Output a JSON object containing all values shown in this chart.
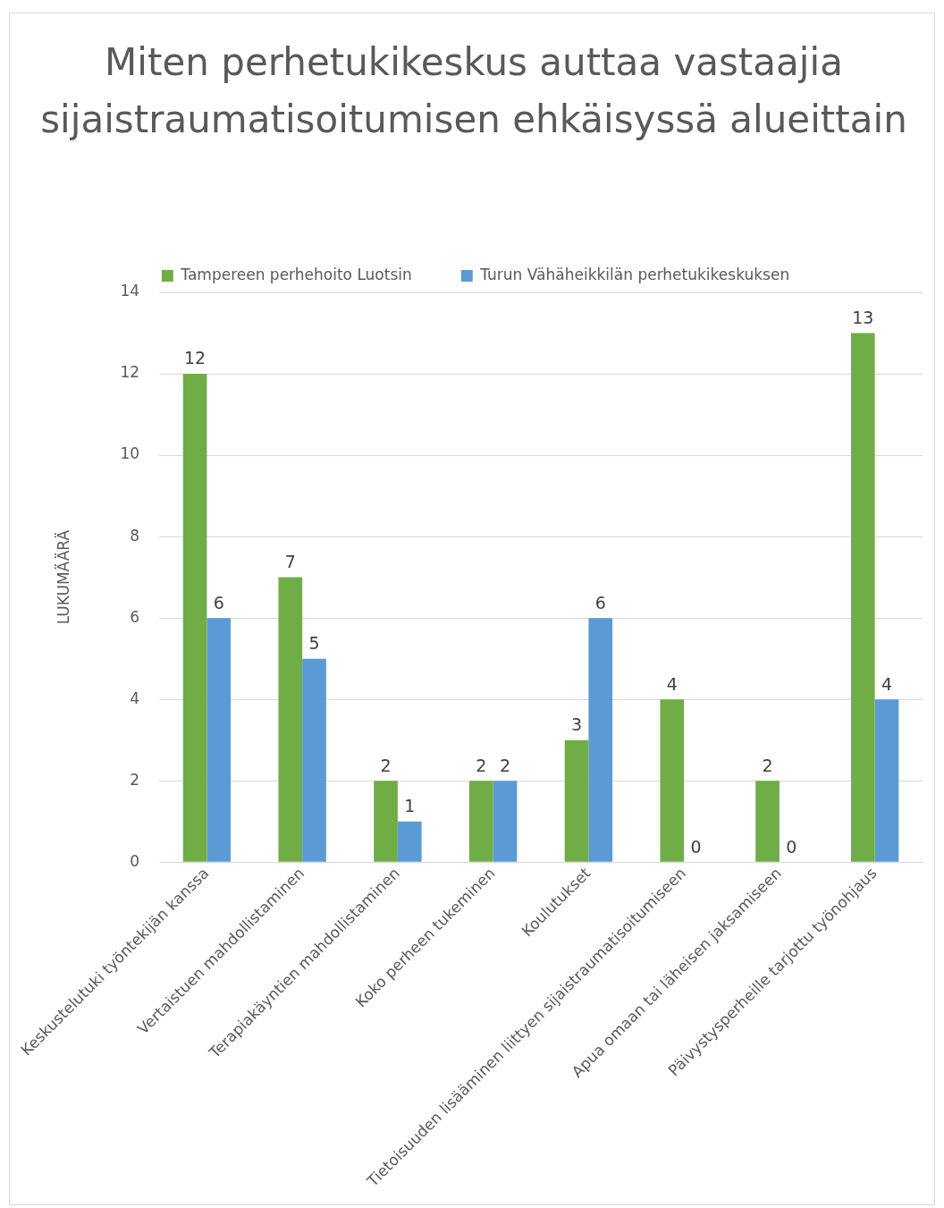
{
  "chart_data": {
    "type": "bar",
    "title": "Miten perhetukikeskus auttaa vastaajia sijaistraumatisoitumisen ehkäisyssä alueittain",
    "ylabel": "LUKUMÄÄRÄ",
    "categories": [
      "Keskustelutuki työntekijän kanssa",
      "Vertaistuen mahdollistaminen",
      "Terapiakäyntien mahdollistaminen",
      "Koko perheen tukeminen",
      "Koulutukset",
      "Tietoisuuden lisääminen liittyen sijaistraumatisoitumiseen",
      "Apua omaan tai läheisen jaksamiseen",
      "Päivystysperheille tarjottu työnohjaus"
    ],
    "series": [
      {
        "name": "Tampereen perhehoito Luotsin",
        "color": "#70ad47",
        "values": [
          12,
          7,
          2,
          2,
          3,
          4,
          2,
          13
        ]
      },
      {
        "name": "Turun Vähäheikkilän perhetukikeskuksen",
        "color": "#5b9bd5",
        "values": [
          6,
          5,
          1,
          2,
          6,
          0,
          0,
          4
        ]
      }
    ],
    "ylim": [
      0,
      14
    ],
    "yticks": [
      0,
      2,
      4,
      6,
      8,
      10,
      12,
      14
    ],
    "grid": "y",
    "legend": "top",
    "data_labels": true
  }
}
